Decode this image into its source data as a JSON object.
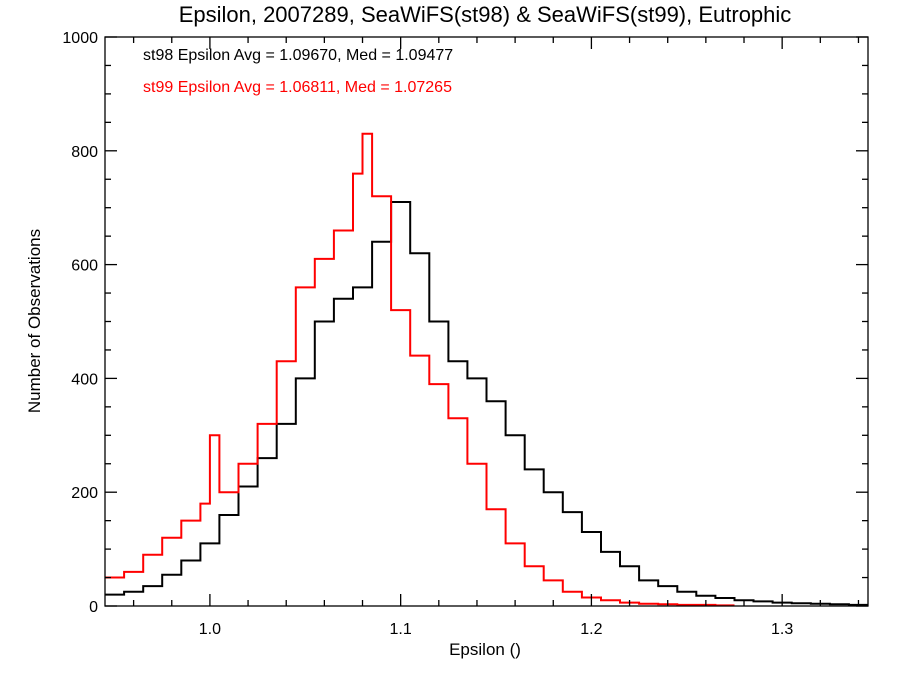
{
  "chart_data": {
    "type": "line",
    "title": "Epsilon, 2007289, SeaWiFS(st98) & SeaWiFS(st99), Eutrophic",
    "xlabel": "Epsilon ()",
    "ylabel": "Number of Observations",
    "xlim": [
      0.945,
      1.345
    ],
    "ylim": [
      0,
      1000
    ],
    "x_ticks": [
      1.0,
      1.1,
      1.2,
      1.3
    ],
    "x_tick_labels": [
      "1.0",
      "1.1",
      "1.2",
      "1.3"
    ],
    "y_ticks": [
      0,
      200,
      400,
      600,
      800,
      1000
    ],
    "y_tick_labels": [
      "0",
      "200",
      "400",
      "600",
      "800",
      "1000"
    ],
    "grid": false,
    "legend_position": "top-left",
    "annotations": [
      {
        "text": "st98 Epsilon Avg = 1.09670, Med = 1.09477",
        "color": "#000000"
      },
      {
        "text": "st99 Epsilon Avg = 1.06811, Med = 1.07265",
        "color": "#ff0000"
      }
    ],
    "series": [
      {
        "color": "#000000",
        "style": "step",
        "x": [
          0.945,
          0.955,
          0.965,
          0.975,
          0.985,
          0.995,
          1.005,
          1.015,
          1.025,
          1.035,
          1.045,
          1.055,
          1.065,
          1.075,
          1.085,
          1.095,
          1.105,
          1.115,
          1.125,
          1.135,
          1.145,
          1.155,
          1.165,
          1.175,
          1.185,
          1.195,
          1.205,
          1.215,
          1.225,
          1.235,
          1.245,
          1.255,
          1.265,
          1.275,
          1.285,
          1.295,
          1.305,
          1.315,
          1.325,
          1.335,
          1.345
        ],
        "y": [
          20,
          25,
          35,
          55,
          80,
          110,
          160,
          210,
          260,
          320,
          400,
          500,
          540,
          560,
          640,
          710,
          620,
          500,
          430,
          400,
          360,
          300,
          240,
          200,
          165,
          130,
          95,
          70,
          45,
          35,
          25,
          18,
          14,
          10,
          8,
          6,
          5,
          4,
          3,
          2,
          2
        ]
      },
      {
        "color": "#ff0000",
        "style": "step",
        "x": [
          0.945,
          0.955,
          0.965,
          0.975,
          0.985,
          0.995,
          1.0,
          1.005,
          1.015,
          1.025,
          1.035,
          1.045,
          1.055,
          1.065,
          1.075,
          1.08,
          1.085,
          1.095,
          1.105,
          1.115,
          1.125,
          1.135,
          1.145,
          1.155,
          1.165,
          1.175,
          1.185,
          1.195,
          1.205,
          1.215,
          1.225,
          1.235,
          1.245,
          1.255,
          1.265,
          1.275
        ],
        "y": [
          50,
          60,
          90,
          120,
          150,
          180,
          300,
          200,
          250,
          320,
          430,
          560,
          610,
          660,
          760,
          830,
          720,
          520,
          440,
          390,
          330,
          250,
          170,
          110,
          70,
          45,
          25,
          15,
          10,
          6,
          4,
          3,
          2,
          2,
          1,
          1
        ]
      }
    ]
  }
}
